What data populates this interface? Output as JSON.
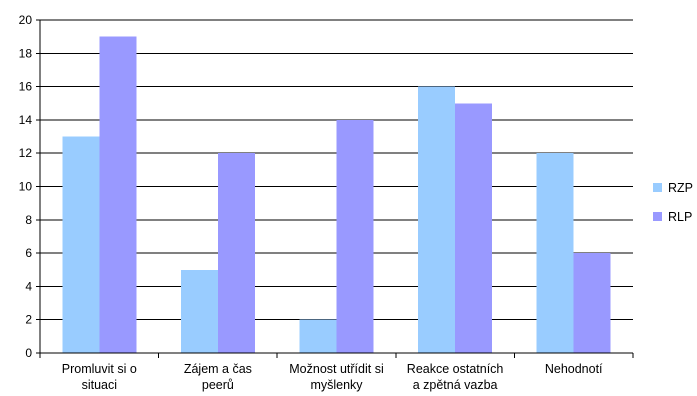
{
  "chart_data": {
    "type": "bar",
    "title": "",
    "xlabel": "",
    "ylabel": "",
    "ylim": [
      0,
      20
    ],
    "yticks": [
      0,
      2,
      4,
      6,
      8,
      10,
      12,
      14,
      16,
      18,
      20
    ],
    "grid": true,
    "legend_position": "right",
    "categories": [
      [
        "Promluvit si o",
        "situaci"
      ],
      [
        "Zájem a čas",
        "peerů"
      ],
      [
        "Možnost utřídit si",
        "myšlenky"
      ],
      [
        "Reakce ostatních",
        "a zpětná vazba"
      ],
      [
        "Nehodnotí"
      ]
    ],
    "series": [
      {
        "name": "RZP",
        "color": "#99ccff",
        "values": [
          13,
          5,
          2,
          16,
          12
        ]
      },
      {
        "name": "RLP",
        "color": "#9999ff",
        "values": [
          19,
          12,
          14,
          15,
          6
        ]
      }
    ]
  }
}
